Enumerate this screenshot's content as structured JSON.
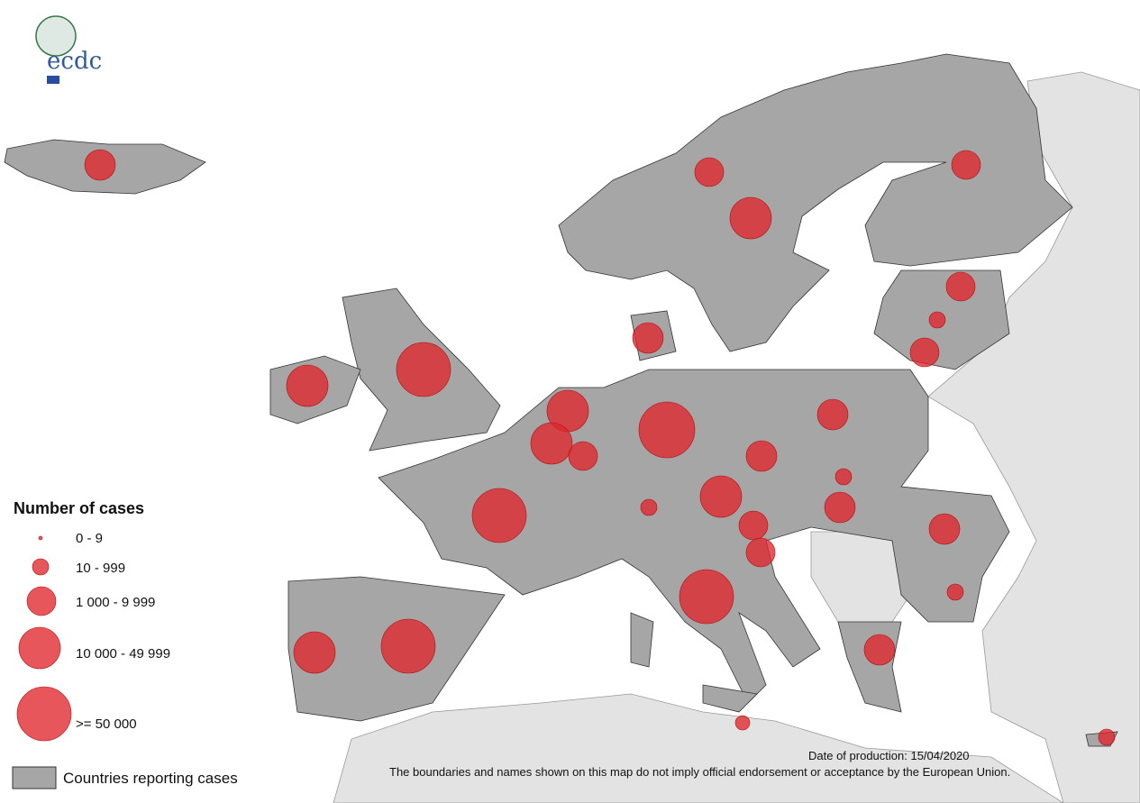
{
  "logo": {
    "text": "ecdc"
  },
  "legend": {
    "title": "Number of cases",
    "classes": [
      "0 - 9",
      "10 - 999",
      "1 000 - 9 999",
      "10 000 - 49 999",
      ">= 50 000"
    ],
    "countries": "Countries reporting cases"
  },
  "footer": {
    "date": "Date of production: 15/04/2020",
    "disclaimer": "The boundaries and names shown on this map do not imply official endorsement or acceptance by the European Union."
  }
}
